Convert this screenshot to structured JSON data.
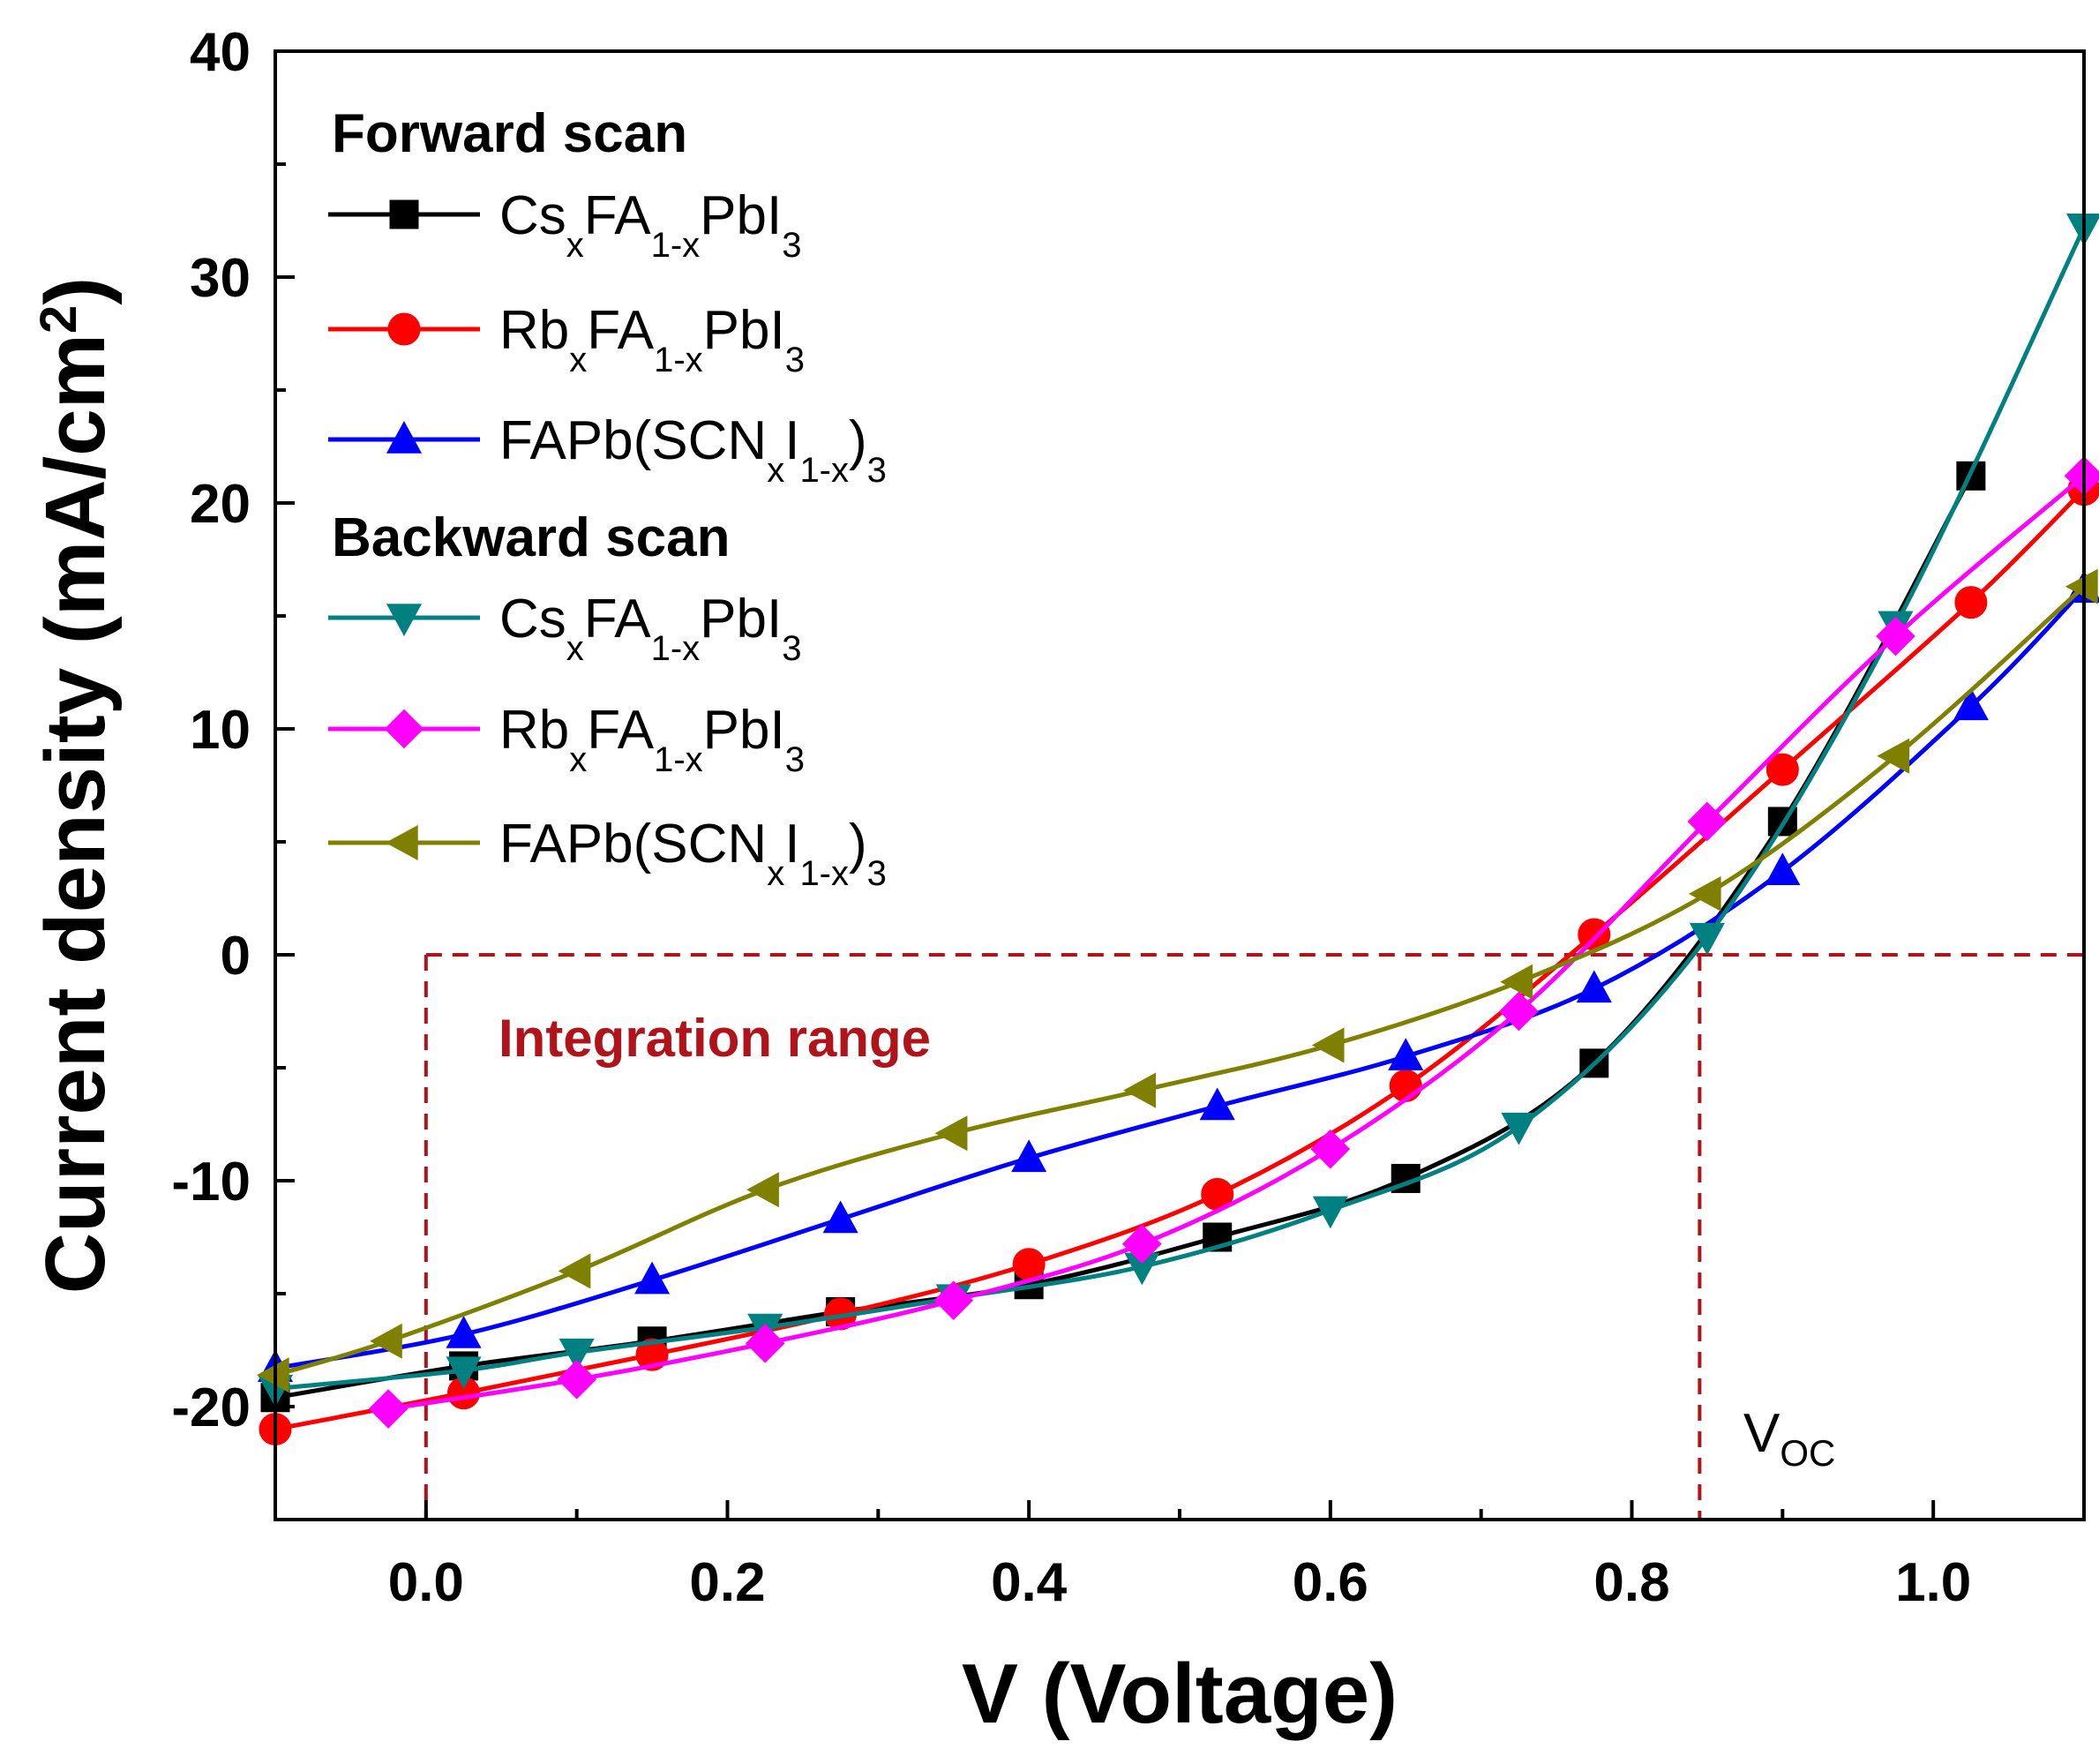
{
  "chart_data": {
    "type": "line",
    "title": "",
    "xlabel": "V (Voltage)",
    "ylabel": "Current density (mA/cm2)",
    "ylabel_base": "Current density (mA/cm",
    "ylabel_sup": "2",
    "ylabel_close": ")",
    "xlim": [
      -0.1,
      1.1
    ],
    "ylim": [
      -25,
      40
    ],
    "xticks": [
      0.0,
      0.2,
      0.4,
      0.6,
      0.8,
      1.0
    ],
    "xtick_labels": [
      "0.0",
      "0.2",
      "0.4",
      "0.6",
      "0.8",
      "1.0"
    ],
    "yticks": [
      -20,
      -10,
      0,
      10,
      20,
      30,
      40
    ],
    "ytick_labels": [
      "-20",
      "-10",
      "0",
      "10",
      "20",
      "30",
      "40"
    ],
    "grid": false,
    "legend_placement": "top-left",
    "legend_groups": [
      {
        "heading": "Forward scan",
        "series_indices": [
          0,
          1,
          2
        ]
      },
      {
        "heading": "Backward scan",
        "series_indices": [
          3,
          4,
          5
        ]
      }
    ],
    "series": [
      {
        "name": "CsxFA1-xPbI3",
        "name_parts": [
          "Cs",
          "x",
          "FA",
          "1-x",
          "PbI",
          "3"
        ],
        "scan": "Forward scan",
        "color": "#000000",
        "marker": "square",
        "x": [
          -0.1,
          0.025,
          0.15,
          0.275,
          0.4,
          0.525,
          0.65,
          0.775,
          0.9,
          1.025
        ],
        "y": [
          -19.6,
          -18.2,
          -17.1,
          -15.8,
          -14.6,
          -12.5,
          -9.9,
          -4.8,
          5.9,
          21.2
        ]
      },
      {
        "name": "RbxFA1-xPbI3",
        "name_parts": [
          "Rb",
          "x",
          "FA",
          "1-x",
          "PbI",
          "3"
        ],
        "scan": "Forward scan",
        "color": "#ff0000",
        "marker": "circle",
        "x": [
          -0.1,
          0.025,
          0.15,
          0.275,
          0.4,
          0.525,
          0.65,
          0.775,
          0.9,
          1.025,
          1.1
        ],
        "y": [
          -21.0,
          -19.4,
          -17.7,
          -15.9,
          -13.7,
          -10.6,
          -5.8,
          0.9,
          8.2,
          15.6,
          20.6
        ]
      },
      {
        "name": "FAPb(SCNxI1-x)3",
        "name_parts": [
          "FAPb(SCN",
          "x",
          "I",
          "1-x",
          ")",
          "3"
        ],
        "scan": "Forward scan",
        "color": "#0000ff",
        "marker": "triangle-up",
        "x": [
          -0.1,
          0.025,
          0.15,
          0.275,
          0.4,
          0.525,
          0.65,
          0.775,
          0.9,
          1.025,
          1.1
        ],
        "y": [
          -18.3,
          -16.8,
          -14.4,
          -11.7,
          -9.0,
          -6.7,
          -4.5,
          -1.5,
          3.7,
          11.0,
          16.2
        ]
      },
      {
        "name": "CsxFA1-xPbI3",
        "name_parts": [
          "Cs",
          "x",
          "FA",
          "1-x",
          "PbI",
          "3"
        ],
        "scan": "Backward scan",
        "color": "#008080",
        "marker": "triangle-down",
        "x": [
          -0.1,
          0.025,
          0.1,
          0.225,
          0.35,
          0.475,
          0.6,
          0.725,
          0.85,
          0.975,
          1.1
        ],
        "y": [
          -19.2,
          -18.4,
          -17.6,
          -16.5,
          -15.2,
          -13.8,
          -11.3,
          -7.6,
          0.8,
          14.6,
          32.2
        ]
      },
      {
        "name": "RbxFA1-xPbI3",
        "name_parts": [
          "Rb",
          "x",
          "FA",
          "1-x",
          "PbI",
          "3"
        ],
        "scan": "Backward scan",
        "color": "#ff00ff",
        "marker": "diamond",
        "x": [
          -0.025,
          0.1,
          0.225,
          0.35,
          0.475,
          0.6,
          0.725,
          0.85,
          0.975,
          1.1
        ],
        "y": [
          -20.1,
          -18.8,
          -17.2,
          -15.3,
          -12.8,
          -8.6,
          -2.5,
          5.9,
          14.1,
          21.2
        ]
      },
      {
        "name": "FAPb(SCNxI1-x)3",
        "name_parts": [
          "FAPb(SCN",
          "x",
          "I",
          "1-x",
          ")",
          "3"
        ],
        "scan": "Backward scan",
        "color": "#808000",
        "marker": "triangle-left",
        "x": [
          -0.1,
          -0.025,
          0.1,
          0.225,
          0.35,
          0.475,
          0.6,
          0.725,
          0.85,
          0.975,
          1.1
        ],
        "y": [
          -18.6,
          -17.1,
          -14.0,
          -10.4,
          -7.9,
          -6.0,
          -4.0,
          -1.2,
          2.7,
          8.8,
          16.3
        ]
      }
    ],
    "annotations": {
      "integration_label": "Integration range",
      "voc_label_main": "V",
      "voc_label_sub": "OC",
      "zero_line_y": 0,
      "left_bound_x": 0.0,
      "voc_x": 0.845,
      "annotation_color": "#b0141a"
    }
  }
}
